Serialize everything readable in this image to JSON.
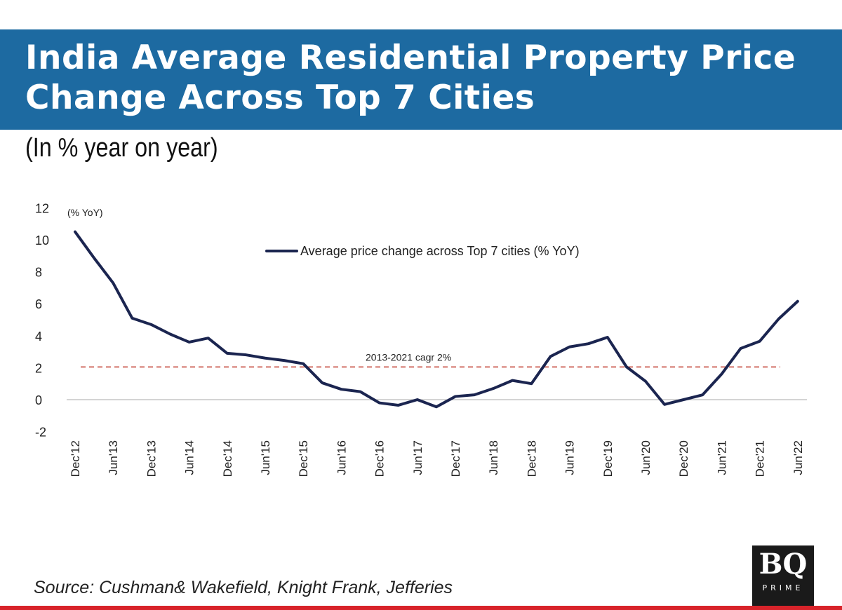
{
  "header": {
    "title_line1": "India Average Residential Property Price",
    "title_line2": "Change Across Top 7 Cities"
  },
  "subtitle": "(In % year on year)",
  "source": "Source: Cushman& Wakefield, Knight Frank, Jefferies",
  "logo": {
    "text": "BQ",
    "subtext": "PRIME"
  },
  "chart_data": {
    "type": "line",
    "ylabel": "(% YoY)",
    "ylim": [
      -2,
      12
    ],
    "yticks": [
      12,
      10,
      8,
      6,
      4,
      2,
      0,
      -2
    ],
    "xtick_labels": [
      "Dec'12",
      "Jun'13",
      "Dec'13",
      "Jun'14",
      "Dec'14",
      "Jun'15",
      "Dec'15",
      "Jun'16",
      "Dec'16",
      "Jun'17",
      "Dec'17",
      "Jun'18",
      "Dec'18",
      "Jun'19",
      "Dec'19",
      "Jun'20",
      "Dec'20",
      "Jun'21",
      "Dec'21",
      "Jun'22"
    ],
    "legend": "top-center",
    "series": [
      {
        "name": "Average price change across Top 7 cities (% YoY)",
        "color": "#1b2550",
        "x": [
          "Dec'12",
          "Mar'13",
          "Jun'13",
          "Sep'13",
          "Dec'13",
          "Mar'14",
          "Jun'14",
          "Sep'14",
          "Dec'14",
          "Mar'15",
          "Jun'15",
          "Sep'15",
          "Dec'15",
          "Mar'16",
          "Jun'16",
          "Sep'16",
          "Dec'16",
          "Mar'17",
          "Jun'17",
          "Sep'17",
          "Dec'17",
          "Mar'18",
          "Jun'18",
          "Sep'18",
          "Dec'18",
          "Mar'19",
          "Jun'19",
          "Sep'19",
          "Dec'19",
          "Mar'20",
          "Jun'20",
          "Sep'20",
          "Dec'20",
          "Mar'21",
          "Jun'21",
          "Sep'21",
          "Dec'21",
          "Mar'22",
          "Jun'22"
        ],
        "values": [
          10.5,
          8.86,
          7.3,
          5.1,
          4.7,
          4.1,
          3.6,
          3.85,
          2.9,
          2.8,
          2.6,
          2.45,
          2.25,
          1.05,
          0.65,
          0.5,
          -0.2,
          -0.35,
          0,
          -0.45,
          0.2,
          0.3,
          0.7,
          1.2,
          1.0,
          2.7,
          3.3,
          3.5,
          3.9,
          2.05,
          1.15,
          -0.3,
          0,
          0.3,
          1.6,
          3.2,
          3.65,
          5.05,
          6.15
        ]
      }
    ],
    "reference_line": {
      "label": "2013-2021 cagr 2%",
      "value": 2,
      "color": "#c0392b",
      "style": "dashed"
    }
  }
}
